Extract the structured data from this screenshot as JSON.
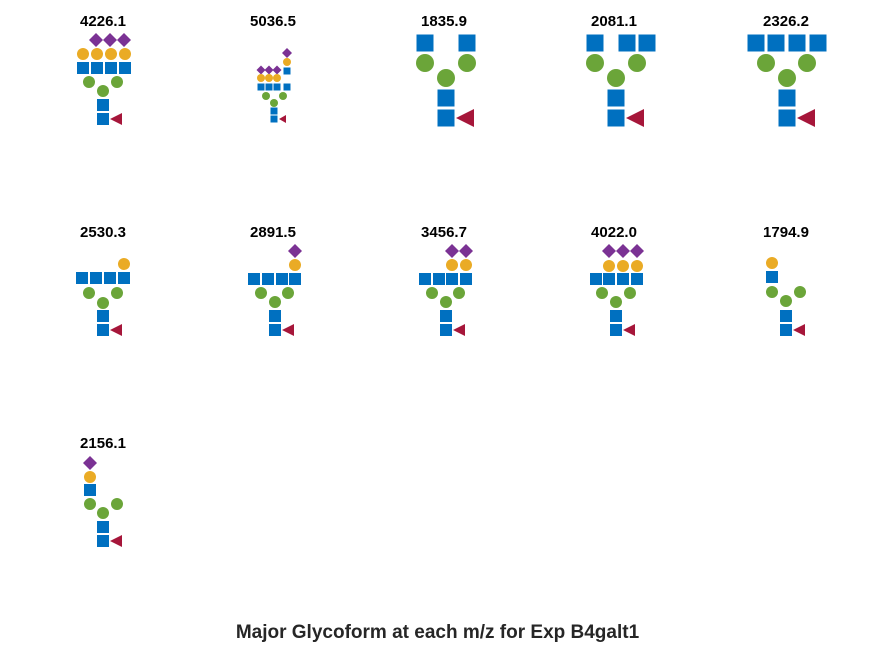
{
  "title": "Major Glycoform at each m/z for Exp B4galt1",
  "colors": {
    "glcnac": "#0070C0",
    "mannose": "#6BA539",
    "galactose": "#EAAB25",
    "sialic_acid": "#7B3294",
    "fucose": "#A6163A"
  },
  "glycoforms": [
    {
      "mz": "4226.1"
    },
    {
      "mz": "5036.5"
    },
    {
      "mz": "1835.9"
    },
    {
      "mz": "2081.1"
    },
    {
      "mz": "2326.2"
    },
    {
      "mz": "2530.3"
    },
    {
      "mz": "2891.5"
    },
    {
      "mz": "3456.7"
    },
    {
      "mz": "4022.0"
    },
    {
      "mz": "1794.9"
    },
    {
      "mz": "2156.1"
    }
  ]
}
